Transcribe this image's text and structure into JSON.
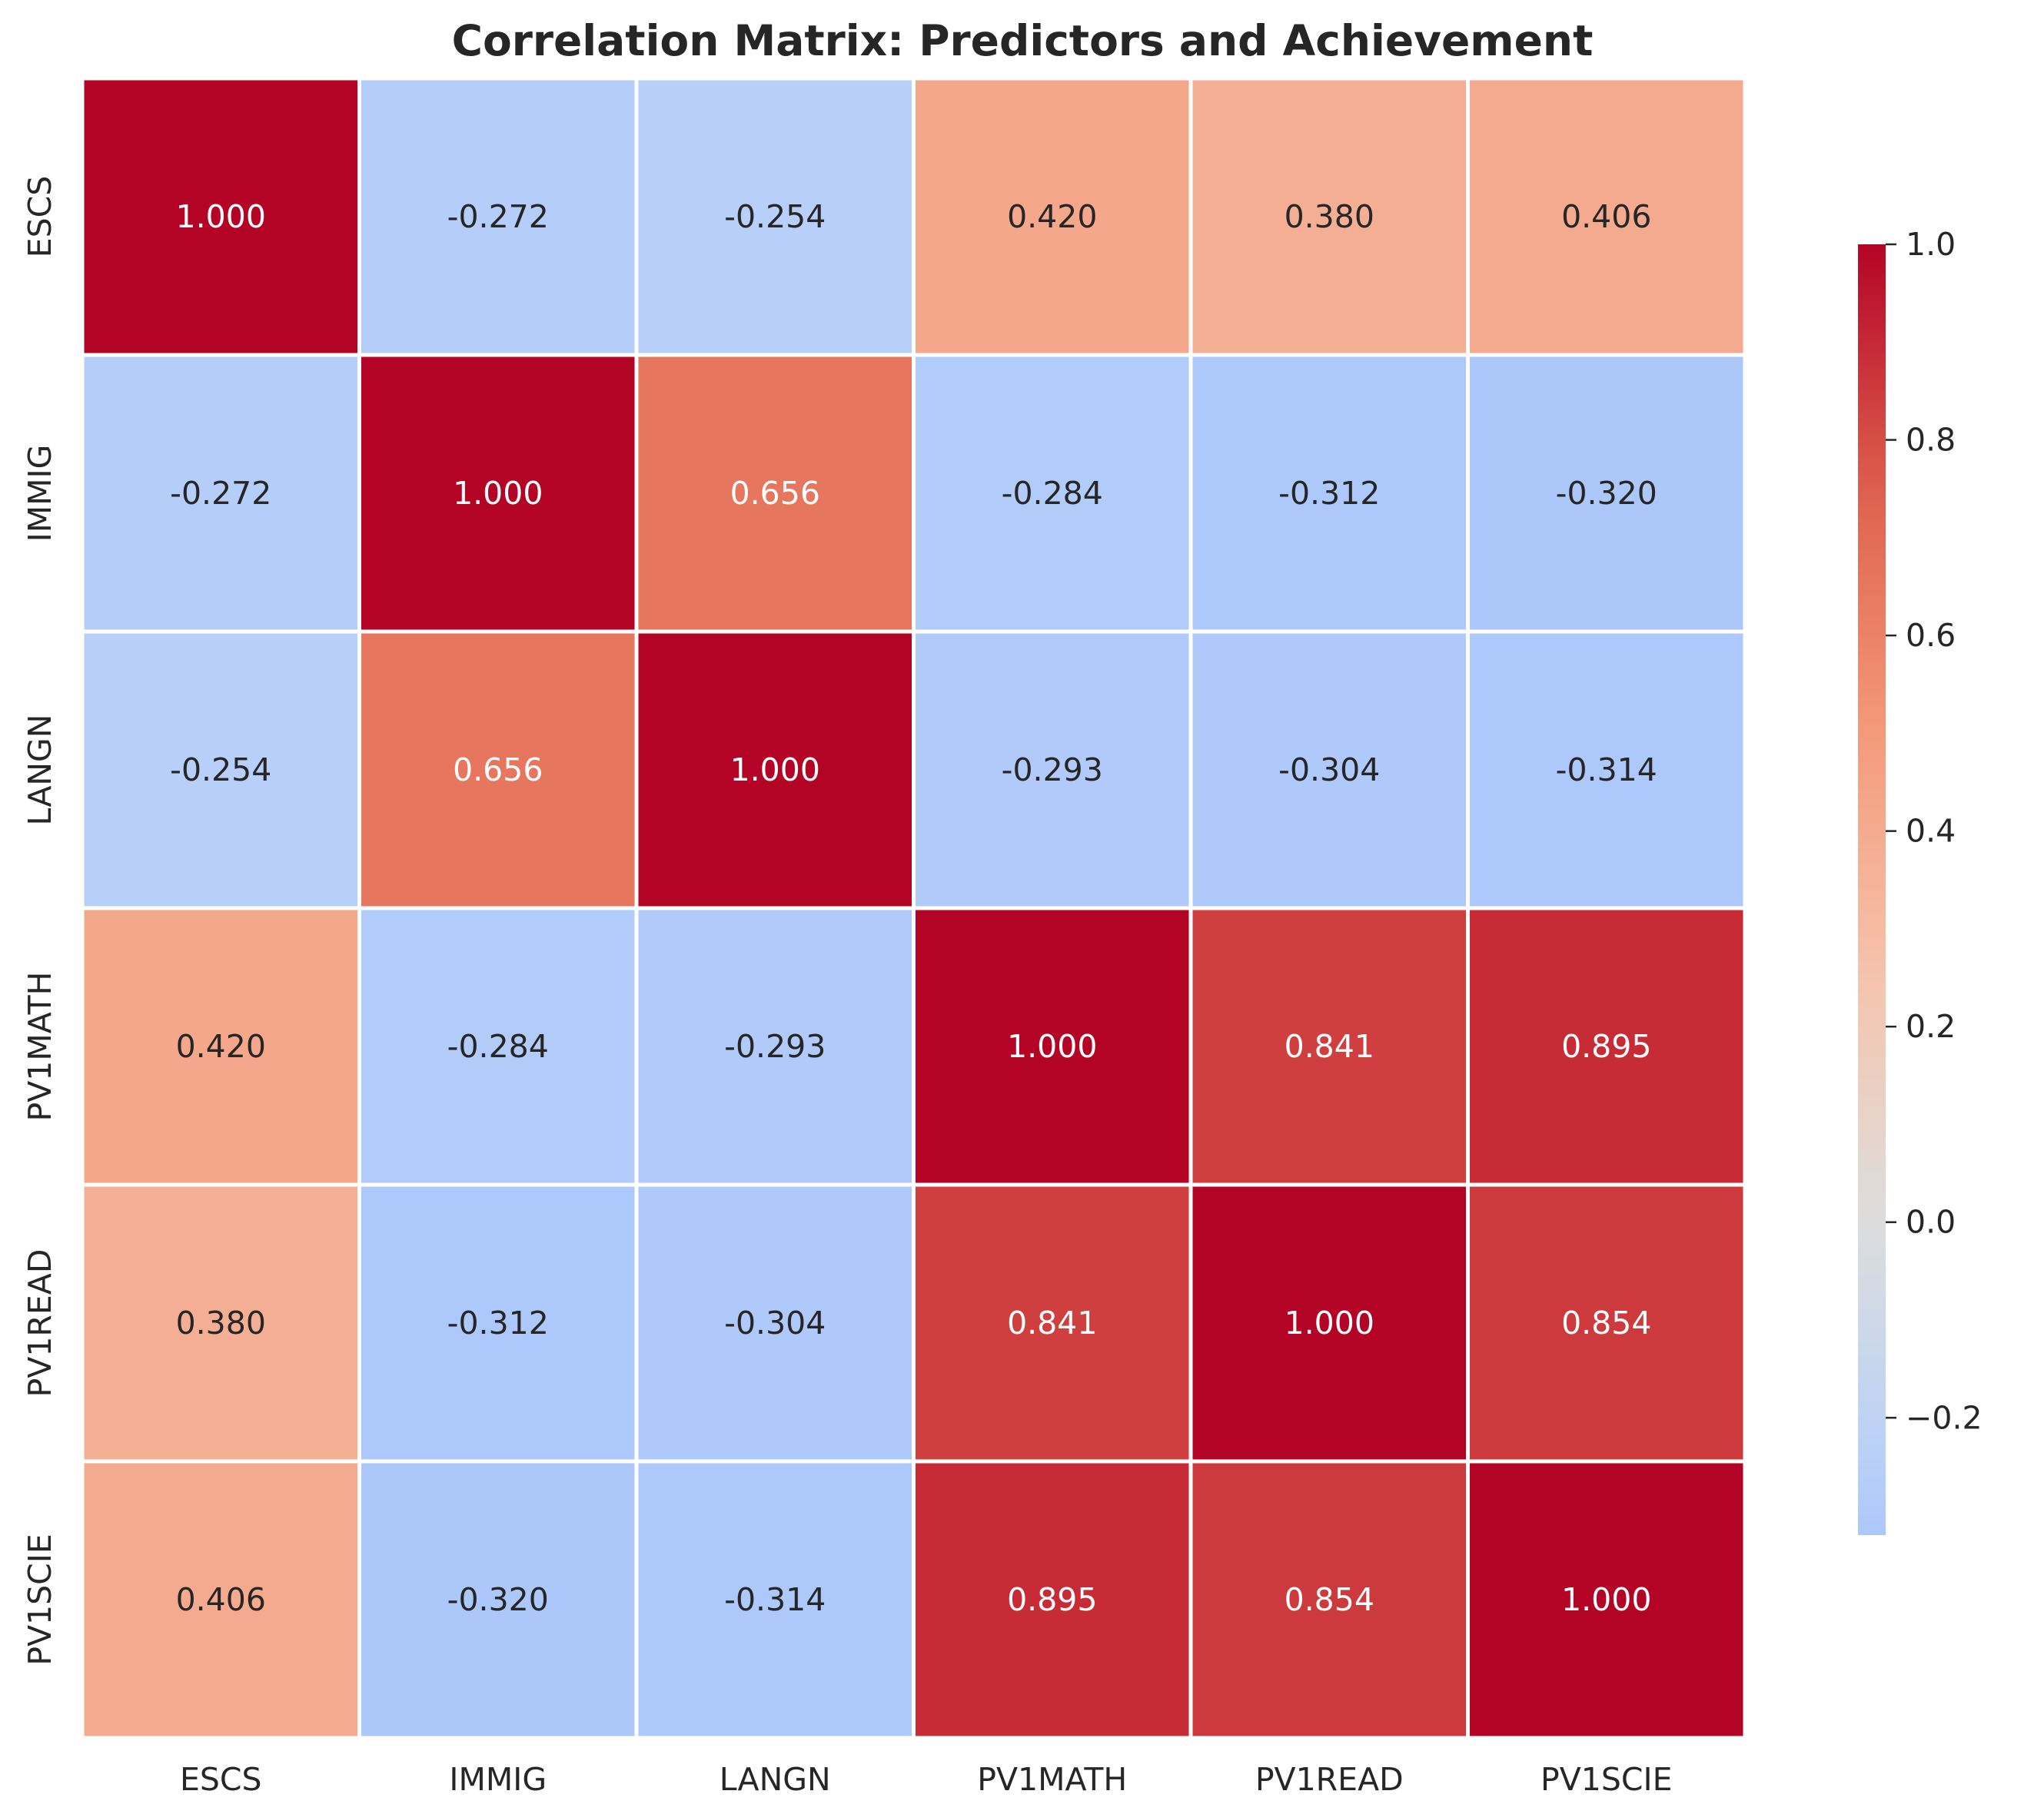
{
  "chart_data": {
    "type": "heatmap",
    "title": "Correlation Matrix: Predictors and Achievement",
    "xlabel": "",
    "ylabel": "",
    "x_categories": [
      "ESCS",
      "IMMIG",
      "LANGN",
      "PV1MATH",
      "PV1READ",
      "PV1SCIE"
    ],
    "y_categories": [
      "ESCS",
      "IMMIG",
      "LANGN",
      "PV1MATH",
      "PV1READ",
      "PV1SCIE"
    ],
    "values": [
      [
        1.0,
        -0.272,
        -0.254,
        0.42,
        0.38,
        0.406
      ],
      [
        -0.272,
        1.0,
        0.656,
        -0.284,
        -0.312,
        -0.32
      ],
      [
        -0.254,
        0.656,
        1.0,
        -0.293,
        -0.304,
        -0.314
      ],
      [
        0.42,
        -0.284,
        -0.293,
        1.0,
        0.841,
        0.895
      ],
      [
        0.38,
        -0.312,
        -0.304,
        0.841,
        1.0,
        0.854
      ],
      [
        0.406,
        -0.32,
        -0.314,
        0.895,
        0.854,
        1.0
      ]
    ],
    "value_format": "3 decimals",
    "colormap": "coolwarm",
    "center": 0,
    "colorbar": {
      "min": -0.32,
      "max": 1.0,
      "ticks": [
        -0.2,
        0.0,
        0.2,
        0.4,
        0.6,
        0.8,
        1.0
      ],
      "tick_labels": [
        "−0.2",
        "0.0",
        "0.2",
        "0.4",
        "0.6",
        "0.8",
        "1.0"
      ],
      "position": "right"
    },
    "grid": false,
    "annotations": true
  }
}
